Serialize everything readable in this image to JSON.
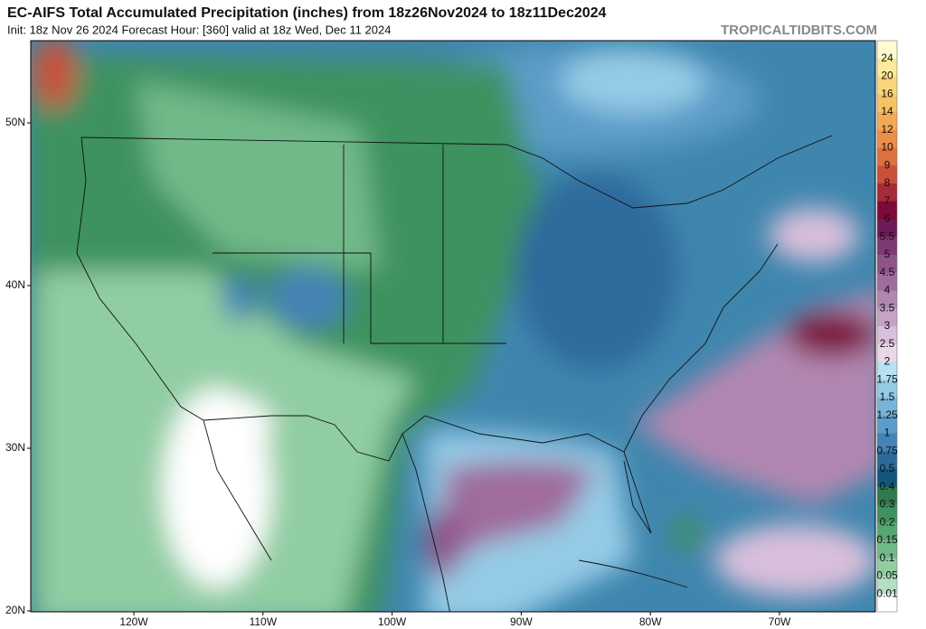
{
  "header": {
    "title": "EC-AIFS Total Accumulated Precipitation (inches) from 18z26Nov2024 to 18z11Dec2024",
    "subtitle": "Init: 18z Nov 26 2024   Forecast Hour: [360]   valid at 18z Wed, Dec 11 2024",
    "watermark": "TROPICALTIDBITS.COM"
  },
  "map": {
    "lat_labels": [
      "50N",
      "40N",
      "30N",
      "20N"
    ],
    "lon_labels": [
      "120W",
      "110W",
      "100W",
      "90W",
      "80W",
      "70W"
    ]
  },
  "colorbar": {
    "labels": [
      "24",
      "20",
      "16",
      "14",
      "12",
      "10",
      "9",
      "8",
      "7",
      "6",
      "5.5",
      "5",
      "4.5",
      "4",
      "3.5",
      "3",
      "2.5",
      "2",
      "1.75",
      "1.5",
      "1.25",
      "1",
      "0.75",
      "0.5",
      "0.4",
      "0.3",
      "0.2",
      "0.15",
      "0.1",
      "0.05",
      "0.01"
    ],
    "colors": [
      "#fffbd0",
      "#fbeb9a",
      "#f8d77a",
      "#f5c266",
      "#f2aa55",
      "#ec8f48",
      "#df7040",
      "#c9503a",
      "#a52a3a",
      "#7c0a3a",
      "#6e1a56",
      "#7e3a72",
      "#8e5388",
      "#9f6c9c",
      "#b187b1",
      "#c5a2c6",
      "#d9bfdb",
      "#e9d7ea",
      "#b7e0f3",
      "#95cbe6",
      "#77b4d8",
      "#5b9cc8",
      "#4483b5",
      "#2d6a9c",
      "#14567a",
      "#2f7a4e",
      "#3e9260",
      "#56a674",
      "#72b98a",
      "#91cda3",
      "#b4dfc0",
      "#ffffff"
    ]
  }
}
